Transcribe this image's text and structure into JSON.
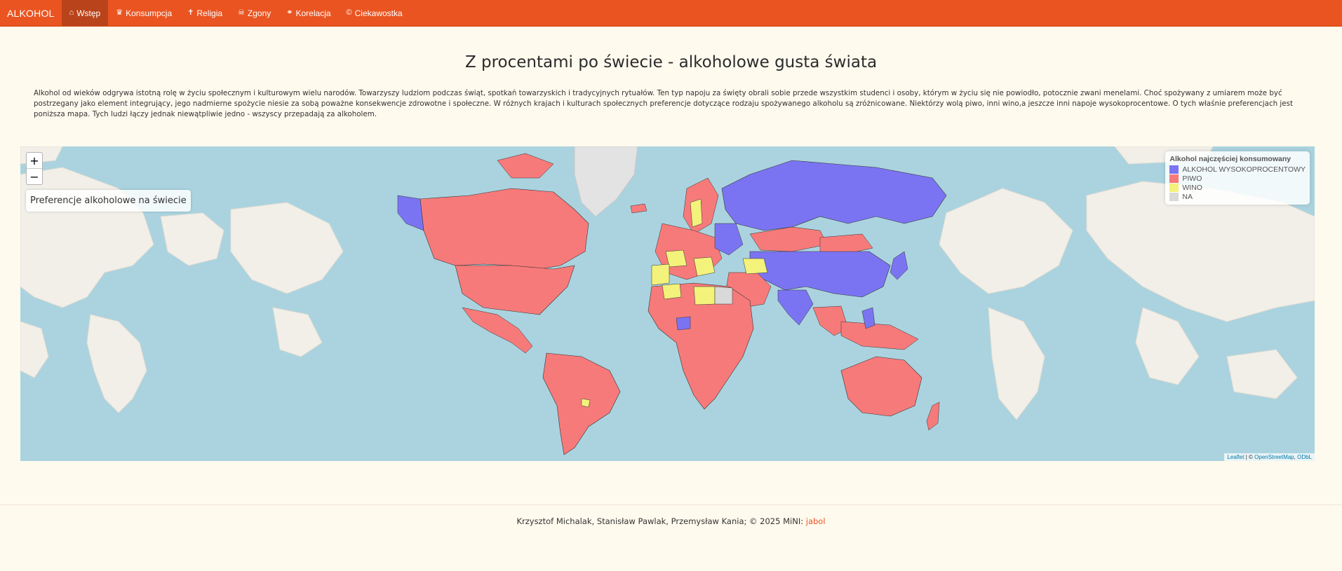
{
  "navbar": {
    "brand": "ALKOHOL",
    "items": [
      {
        "label": "Wstęp",
        "icon": "home-icon",
        "glyph": "⌂",
        "active": true
      },
      {
        "label": "Konsumpcja",
        "icon": "crown-icon",
        "glyph": "♛",
        "active": false
      },
      {
        "label": "Religia",
        "icon": "cross-icon",
        "glyph": "✝",
        "active": false
      },
      {
        "label": "Zgony",
        "icon": "skull-icon",
        "glyph": "☠",
        "active": false
      },
      {
        "label": "Korelacja",
        "icon": "link-icon",
        "glyph": "⚭",
        "active": false
      },
      {
        "label": "Ciekawostka",
        "icon": "copyright-icon",
        "glyph": "©",
        "active": false
      }
    ],
    "color": "#ea5421"
  },
  "page": {
    "title": "Z procentami po świecie - alkoholowe gusta świata",
    "intro": "Alkohol od wieków odgrywa istotną rolę w życiu społecznym i kulturowym wielu narodów. Towarzyszy ludziom podczas świąt, spotkań towarzyskich i tradycyjnych rytuałów. Ten typ napoju za święty obrali sobie przede wszystkim studenci i osoby, którym w życiu się nie powiodło, potocznie zwani menelami. Choć spożywany z umiarem może być postrzegany jako element integrujący, jego nadmierne spożycie niesie za sobą poważne konsekwencje zdrowotne i społeczne. W różnych krajach i kulturach społecznych preferencje dotyczące rodzaju spożywanego alkoholu są zróżnicowane. Niektórzy wolą piwo, inni wino,a jeszcze inni napoje wysokoprocentowe. O tych właśnie preferencjach jest poniższa mapa. Tych ludzi łączy jednak niewątpliwie jedno - wszyscy przepadają za alkoholem."
  },
  "map": {
    "zoom_in": "+",
    "zoom_out": "−",
    "title": "Preferencje alkoholowe na świecie",
    "legend": {
      "title": "Alkohol najczęściej konsumowany",
      "entries": [
        {
          "label": "ALKOHOL WYSOKOPROCENTOWY",
          "color": "#7b74f2"
        },
        {
          "label": "PIWO",
          "color": "#f77a7a"
        },
        {
          "label": "WINO",
          "color": "#f3f27b"
        },
        {
          "label": "NA",
          "color": "#d9d9d9"
        }
      ]
    },
    "attribution": {
      "leaflet": "Leaflet",
      "separator": " | © ",
      "osm": "OpenStreetMap",
      "comma": ", ",
      "odbl": "ODbL"
    }
  },
  "footer": {
    "text": "Krzysztof Michalak, Stanisław Pawlak, Przemysław Kania; © 2025 MiNI: ",
    "link": "jabol"
  }
}
